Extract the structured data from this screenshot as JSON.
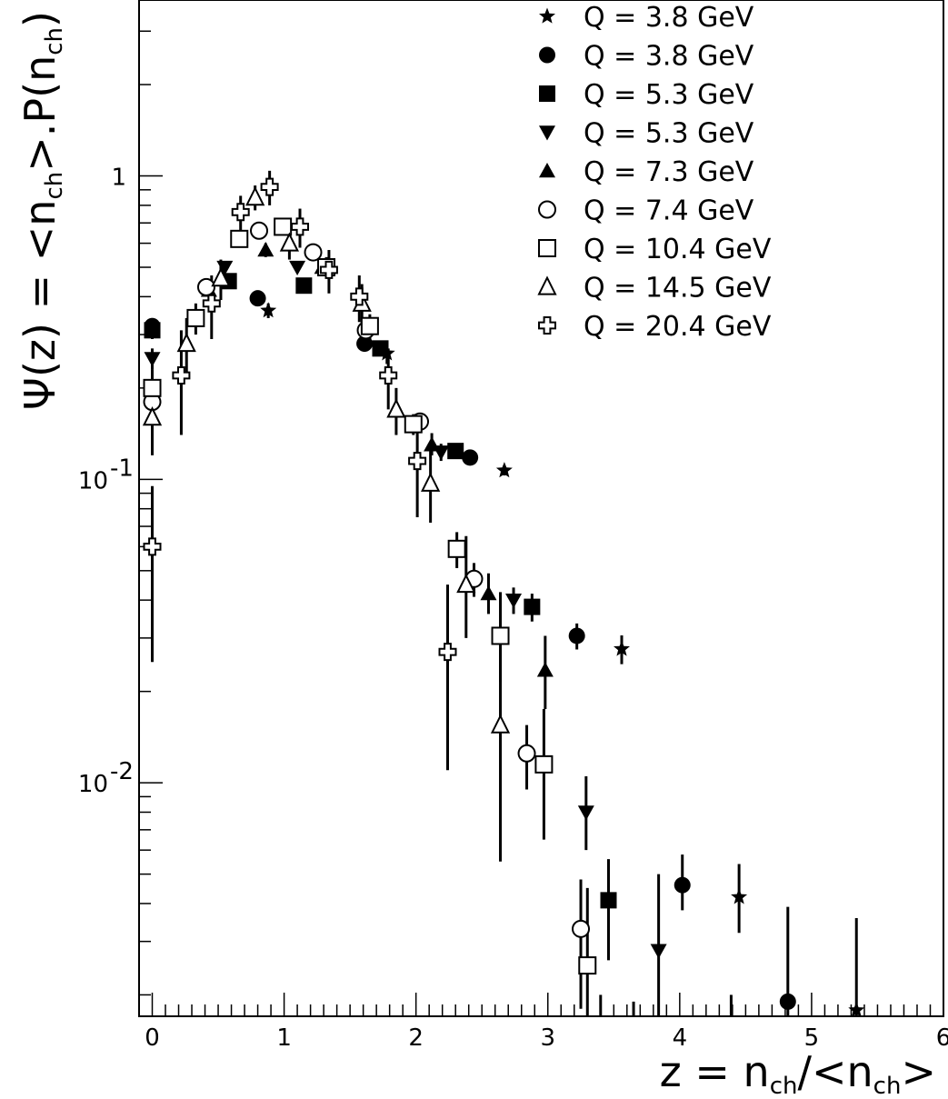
{
  "chart_data": {
    "type": "scatter",
    "title": "",
    "xlabel": "z = n_ch/<n_ch>",
    "ylabel": "Ψ(z) = <n_ch>.P(n_ch)",
    "xlabel_parts": {
      "lhs": "z = n",
      "sub1": "ch",
      "mid": "/<n",
      "sub2": "ch",
      "rhs": ">"
    },
    "ylabel_parts": {
      "lhs": "Ψ(z) = <n",
      "sub1": "ch",
      "mid": ">.P(n",
      "sub2": "ch",
      "rhs": ")"
    },
    "xlim": [
      -0.1,
      6
    ],
    "ylim": [
      0.0017,
      3.8
    ],
    "yscale": "log",
    "grid": false,
    "legend_position": "top-right",
    "x_ticks": [
      {
        "value": 0,
        "label": "0"
      },
      {
        "value": 1,
        "label": "1"
      },
      {
        "value": 2,
        "label": "2"
      },
      {
        "value": 3,
        "label": "3"
      },
      {
        "value": 4,
        "label": "4"
      },
      {
        "value": 5,
        "label": "5"
      },
      {
        "value": 6,
        "label": "6"
      }
    ],
    "y_ticks": [
      {
        "value": 1,
        "label": "1",
        "exp": ""
      },
      {
        "value": 0.1,
        "label": "10",
        "exp": "-1"
      },
      {
        "value": 0.01,
        "label": "10",
        "exp": "-2"
      }
    ],
    "series": [
      {
        "name": "Q = 3.8 GeV",
        "marker": "star",
        "points": [
          [
            0.88,
            0.36,
            0.02,
            0.02
          ],
          [
            1.78,
            0.26,
            0.02,
            0.02
          ],
          [
            2.67,
            0.107,
            0.004,
            0.004
          ],
          [
            3.56,
            0.0276,
            0.003,
            0.003
          ],
          [
            4.45,
            0.0042,
            0.001,
            0.0012
          ],
          [
            5.34,
            0.00178,
            0.0008,
            0.0018
          ]
        ]
      },
      {
        "name": "Q = 3.8 GeV",
        "marker": "circle-filled",
        "points": [
          [
            0.0,
            0.32,
            0.02,
            0.02
          ],
          [
            0.8,
            0.395,
            0.02,
            0.02
          ],
          [
            1.61,
            0.28,
            0.015,
            0.015
          ],
          [
            2.41,
            0.118,
            0.005,
            0.005
          ],
          [
            3.22,
            0.0305,
            0.003,
            0.003
          ],
          [
            4.02,
            0.0046,
            0.0008,
            0.0012
          ],
          [
            4.82,
            0.0019,
            0.0015,
            0.002
          ]
        ]
      },
      {
        "name": "Q = 5.3 GeV",
        "marker": "square-filled",
        "points": [
          [
            0.0,
            0.31,
            0.02,
            0.02
          ],
          [
            0.58,
            0.45,
            0.02,
            0.02
          ],
          [
            1.15,
            0.435,
            0.02,
            0.02
          ],
          [
            1.73,
            0.27,
            0.015,
            0.015
          ],
          [
            2.3,
            0.124,
            0.006,
            0.006
          ],
          [
            2.88,
            0.038,
            0.004,
            0.004
          ],
          [
            3.46,
            0.0041,
            0.0015,
            0.0015
          ]
        ]
      },
      {
        "name": "Q = 5.3 GeV",
        "marker": "triangle-down",
        "points": [
          [
            0.0,
            0.25,
            0.02,
            0.02
          ],
          [
            0.55,
            0.5,
            0.02,
            0.02
          ],
          [
            1.1,
            0.5,
            0.02,
            0.02
          ],
          [
            1.65,
            0.31,
            0.02,
            0.02
          ],
          [
            2.19,
            0.123,
            0.008,
            0.008
          ],
          [
            2.74,
            0.04,
            0.004,
            0.004
          ],
          [
            3.29,
            0.008,
            0.002,
            0.0025
          ],
          [
            3.84,
            0.0028,
            0.0013,
            0.0022
          ],
          [
            4.39,
            0.0011,
            0.0005,
            0.0009
          ]
        ]
      },
      {
        "name": "Q = 7.3 GeV",
        "marker": "triangle-up",
        "points": [
          [
            0.43,
            0.42,
            0.03,
            0.03
          ],
          [
            0.86,
            0.57,
            0.03,
            0.03
          ],
          [
            1.29,
            0.5,
            0.03,
            0.03
          ],
          [
            2.12,
            0.13,
            0.01,
            0.012
          ],
          [
            2.55,
            0.042,
            0.006,
            0.007
          ],
          [
            2.98,
            0.0235,
            0.006,
            0.007
          ],
          [
            3.4,
            0.0011,
            0.0006,
            0.0009
          ]
        ]
      },
      {
        "name": "Q = 7.4 GeV",
        "marker": "circle-open",
        "points": [
          [
            0.0,
            0.18,
            0.03,
            0.03
          ],
          [
            0.41,
            0.43,
            0.03,
            0.03
          ],
          [
            0.81,
            0.66,
            0.03,
            0.03
          ],
          [
            1.22,
            0.56,
            0.03,
            0.03
          ],
          [
            1.62,
            0.31,
            0.02,
            0.02
          ],
          [
            2.03,
            0.155,
            0.01,
            0.01
          ],
          [
            2.44,
            0.047,
            0.006,
            0.006
          ],
          [
            2.84,
            0.0125,
            0.003,
            0.003
          ],
          [
            3.25,
            0.0033,
            0.0015,
            0.0015
          ],
          [
            3.65,
            0.0011,
            0.0006,
            0.0008
          ]
        ]
      },
      {
        "name": "Q = 10.4 GeV",
        "marker": "square-open",
        "points": [
          [
            0.0,
            0.2,
            0.03,
            0.03
          ],
          [
            0.33,
            0.34,
            0.04,
            0.04
          ],
          [
            0.66,
            0.62,
            0.04,
            0.04
          ],
          [
            0.99,
            0.68,
            0.04,
            0.04
          ],
          [
            1.32,
            0.5,
            0.04,
            0.04
          ],
          [
            1.65,
            0.32,
            0.03,
            0.03
          ],
          [
            1.98,
            0.152,
            0.012,
            0.012
          ],
          [
            2.31,
            0.059,
            0.008,
            0.008
          ],
          [
            2.64,
            0.0305,
            0.009,
            0.012
          ],
          [
            2.97,
            0.0115,
            0.005,
            0.006
          ],
          [
            3.3,
            0.0025,
            0.0015,
            0.002
          ]
        ]
      },
      {
        "name": "Q = 14.5 GeV",
        "marker": "triangle-open",
        "points": [
          [
            0.0,
            0.16,
            0.04,
            0.04
          ],
          [
            0.26,
            0.28,
            0.06,
            0.06
          ],
          [
            0.52,
            0.46,
            0.07,
            0.07
          ],
          [
            0.78,
            0.85,
            0.08,
            0.08
          ],
          [
            1.04,
            0.6,
            0.07,
            0.07
          ],
          [
            1.59,
            0.38,
            0.06,
            0.06
          ],
          [
            1.85,
            0.17,
            0.03,
            0.03
          ],
          [
            2.11,
            0.097,
            0.025,
            0.03
          ],
          [
            2.38,
            0.045,
            0.015,
            0.02
          ],
          [
            2.64,
            0.0155,
            0.01,
            0.012
          ]
        ]
      },
      {
        "name": "Q = 20.4 GeV",
        "marker": "cross-open",
        "points": [
          [
            0.0,
            0.06,
            0.035,
            0.035
          ],
          [
            0.22,
            0.22,
            0.08,
            0.09
          ],
          [
            0.45,
            0.38,
            0.09,
            0.09
          ],
          [
            0.67,
            0.76,
            0.1,
            0.1
          ],
          [
            0.89,
            0.92,
            0.12,
            0.12
          ],
          [
            1.12,
            0.68,
            0.1,
            0.1
          ],
          [
            1.34,
            0.49,
            0.08,
            0.08
          ],
          [
            1.57,
            0.4,
            0.07,
            0.07
          ],
          [
            1.79,
            0.22,
            0.05,
            0.05
          ],
          [
            2.01,
            0.115,
            0.04,
            0.04
          ],
          [
            2.24,
            0.027,
            0.016,
            0.018
          ]
        ]
      }
    ]
  }
}
